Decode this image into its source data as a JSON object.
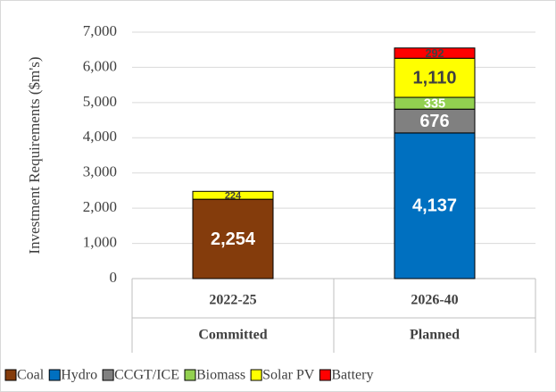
{
  "chart_data": {
    "type": "stacked_bar",
    "y_axis_label": "Investment Requirements ($m's)",
    "categories": [
      "2022-25",
      "2026-40"
    ],
    "groups": [
      "Committed",
      "Planned"
    ],
    "series": [
      {
        "name": "Coal",
        "color": "#843c0c",
        "label_color": "#ffffff",
        "values": [
          2254,
          null
        ],
        "value_labels": [
          "2,254",
          null
        ]
      },
      {
        "name": "Hydro",
        "color": "#0070c0",
        "label_color": "#ffffff",
        "values": [
          null,
          4137
        ],
        "value_labels": [
          null,
          "4,137"
        ]
      },
      {
        "name": "CCGT/ICE",
        "color": "#808080",
        "label_color": "#ffffff",
        "values": [
          null,
          676
        ],
        "value_labels": [
          null,
          "676"
        ]
      },
      {
        "name": "Biomass",
        "color": "#92d050",
        "label_color": "#ffffff",
        "values": [
          null,
          335
        ],
        "value_labels": [
          null,
          "335"
        ]
      },
      {
        "name": "Solar PV",
        "color": "#ffff00",
        "label_color": "#404040",
        "values": [
          224,
          1110
        ],
        "value_labels": [
          "224",
          "1,110"
        ]
      },
      {
        "name": "Battery",
        "color": "#ff0000",
        "label_color": "#404040",
        "values": [
          null,
          292
        ],
        "value_labels": [
          null,
          "292"
        ]
      }
    ],
    "ylim": [
      0,
      7000
    ],
    "yticks": [
      0,
      {
        "value": 1000,
        "label": "1,000"
      },
      {
        "value": 2000,
        "label": "2,000"
      },
      {
        "value": 3000,
        "label": "3,000"
      },
      {
        "value": 4000,
        "label": "4,000"
      },
      {
        "value": 5000,
        "label": "5,000"
      },
      {
        "value": 6000,
        "label": "6,000"
      },
      {
        "value": 7000,
        "label": "7,000"
      }
    ],
    "grid": true,
    "legend": "bottom"
  }
}
